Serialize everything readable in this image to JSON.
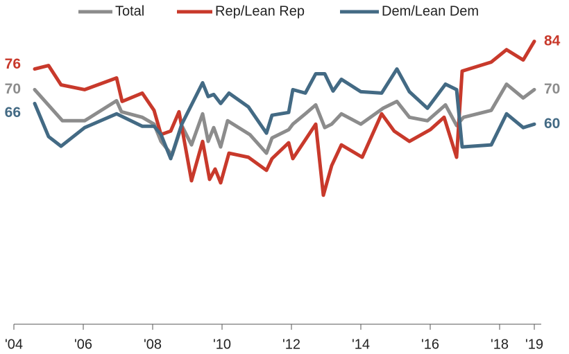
{
  "chart_data": {
    "type": "line",
    "xlim": [
      2004,
      2019.2
    ],
    "ylim": [
      2,
      96
    ],
    "xticks": [
      {
        "value": 2004,
        "label": "'04"
      },
      {
        "value": 2006,
        "label": "'06"
      },
      {
        "value": 2008,
        "label": "'08"
      },
      {
        "value": 2010,
        "label": "'10"
      },
      {
        "value": 2012,
        "label": "'12"
      },
      {
        "value": 2014,
        "label": "'14"
      },
      {
        "value": 2016,
        "label": "'16"
      },
      {
        "value": 2018,
        "label": "'18"
      },
      {
        "value": 2019,
        "label": "'19"
      }
    ],
    "series": [
      {
        "name": "Total",
        "color": "#8c8c8c",
        "x": [
          2004.6,
          2005.4,
          2006.04,
          2006.96,
          2007.1,
          2007.7,
          2008.04,
          2008.24,
          2008.56,
          2008.84,
          2009.12,
          2009.44,
          2009.6,
          2009.76,
          2009.96,
          2010.16,
          2010.8,
          2011.28,
          2011.44,
          2011.92,
          2012.04,
          2012.4,
          2012.7,
          2012.96,
          2013.16,
          2013.44,
          2014,
          2014.64,
          2015.04,
          2015.4,
          2015.92,
          2016.44,
          2016.76,
          2016.96,
          2017.76,
          2018.2,
          2018.68,
          2019
        ],
        "values": [
          70,
          61,
          61,
          66.8,
          63.6,
          62,
          60,
          55,
          51,
          59.6,
          54,
          63,
          55,
          59,
          53.4,
          61,
          57,
          51.6,
          56,
          58.4,
          60,
          63,
          65.6,
          59,
          60,
          63,
          60,
          64.6,
          66.6,
          62,
          61,
          65.6,
          59.6,
          62,
          64,
          71.6,
          67.6,
          70
        ]
      },
      {
        "name": "Rep/Lean Rep",
        "color": "#c8392b",
        "x": [
          2004.6,
          2005,
          2005.36,
          2006.04,
          2006.96,
          2007.12,
          2007.7,
          2008.04,
          2008.24,
          2008.52,
          2008.76,
          2009.12,
          2009.44,
          2009.64,
          2009.8,
          2009.96,
          2010.2,
          2010.76,
          2011.28,
          2011.44,
          2011.92,
          2012.04,
          2012.7,
          2012.92,
          2013.16,
          2013.44,
          2014.04,
          2014.6,
          2014.96,
          2015.4,
          2016,
          2016.4,
          2016.76,
          2016.92,
          2017.76,
          2018.2,
          2018.68,
          2019
        ],
        "values": [
          76,
          77,
          71.4,
          70,
          73.4,
          66.6,
          69,
          64,
          57,
          58,
          63.6,
          43.6,
          55,
          44,
          47,
          43,
          51.6,
          50.4,
          46.6,
          50,
          54.6,
          50,
          60,
          39.4,
          48,
          54,
          50.4,
          63,
          58,
          55,
          58.4,
          62,
          50.4,
          75.4,
          78,
          81.6,
          78.6,
          84
        ]
      },
      {
        "name": "Dem/Lean Dem",
        "color": "#436a84",
        "x": [
          2004.6,
          2005,
          2005.36,
          2006.04,
          2006.96,
          2007.7,
          2008.04,
          2008.24,
          2008.52,
          2008.84,
          2009.44,
          2009.6,
          2009.76,
          2009.96,
          2010.2,
          2010.76,
          2011.28,
          2011.44,
          2011.92,
          2012.04,
          2012.4,
          2012.7,
          2012.96,
          2013.2,
          2013.44,
          2014,
          2014.6,
          2015.04,
          2015.4,
          2015.92,
          2016.44,
          2016.76,
          2016.92,
          2017.76,
          2018.2,
          2018.68,
          2019
        ],
        "values": [
          66,
          56.4,
          53.6,
          59,
          63,
          59.4,
          59.4,
          57,
          50,
          60,
          72,
          68,
          68.6,
          66,
          69,
          65,
          57.4,
          62.6,
          63.4,
          70,
          69,
          74.6,
          74.6,
          69.6,
          73,
          69.4,
          69,
          76,
          69.4,
          64.6,
          71.6,
          70,
          53.4,
          54,
          63,
          59,
          60
        ]
      }
    ]
  }
}
